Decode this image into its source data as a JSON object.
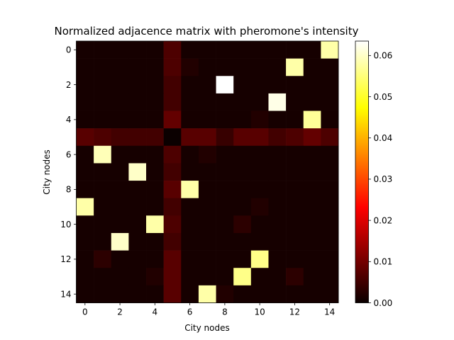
{
  "chart_data": {
    "type": "heatmap",
    "title": "Normalized adjacence matrix with pheromone's intensity",
    "xlabel": "City nodes",
    "ylabel": "City nodes",
    "rows": 15,
    "cols": 15,
    "x_ticks": [
      "0",
      "2",
      "4",
      "6",
      "8",
      "10",
      "12",
      "14"
    ],
    "y_ticks": [
      "0",
      "2",
      "4",
      "6",
      "8",
      "10",
      "12",
      "14"
    ],
    "colormap": "hot",
    "colorbar": {
      "vmin": 0.0,
      "vmax": 0.0635,
      "ticks": [
        0.0,
        0.01,
        0.02,
        0.03,
        0.04,
        0.05,
        0.06
      ],
      "tick_labels": [
        "0.00",
        "0.01",
        "0.02",
        "0.03",
        "0.04",
        "0.05",
        "0.06"
      ]
    },
    "grid": false,
    "values": [
      [
        0.001,
        0.001,
        0.001,
        0.001,
        0.001,
        0.006,
        0.001,
        0.001,
        0.001,
        0.001,
        0.001,
        0.001,
        0.001,
        0.001,
        0.058
      ],
      [
        0.001,
        0.001,
        0.001,
        0.001,
        0.001,
        0.006,
        0.002,
        0.001,
        0.001,
        0.001,
        0.001,
        0.001,
        0.058,
        0.001,
        0.001
      ],
      [
        0.001,
        0.001,
        0.001,
        0.001,
        0.001,
        0.005,
        0.001,
        0.001,
        0.0635,
        0.001,
        0.001,
        0.001,
        0.001,
        0.001,
        0.001
      ],
      [
        0.001,
        0.001,
        0.001,
        0.001,
        0.001,
        0.005,
        0.001,
        0.001,
        0.001,
        0.001,
        0.001,
        0.062,
        0.001,
        0.001,
        0.001
      ],
      [
        0.001,
        0.001,
        0.001,
        0.001,
        0.001,
        0.008,
        0.001,
        0.001,
        0.001,
        0.001,
        0.002,
        0.001,
        0.001,
        0.057,
        0.001
      ],
      [
        0.007,
        0.006,
        0.005,
        0.005,
        0.005,
        0.0,
        0.007,
        0.007,
        0.004,
        0.007,
        0.007,
        0.005,
        0.006,
        0.008,
        0.006
      ],
      [
        0.001,
        0.059,
        0.001,
        0.001,
        0.001,
        0.006,
        0.001,
        0.002,
        0.001,
        0.001,
        0.001,
        0.001,
        0.001,
        0.001,
        0.001
      ],
      [
        0.001,
        0.001,
        0.001,
        0.06,
        0.001,
        0.005,
        0.001,
        0.001,
        0.001,
        0.001,
        0.001,
        0.001,
        0.001,
        0.001,
        0.001
      ],
      [
        0.001,
        0.001,
        0.001,
        0.001,
        0.001,
        0.007,
        0.058,
        0.001,
        0.001,
        0.001,
        0.001,
        0.001,
        0.001,
        0.001,
        0.001
      ],
      [
        0.058,
        0.001,
        0.001,
        0.001,
        0.001,
        0.005,
        0.001,
        0.001,
        0.001,
        0.001,
        0.002,
        0.001,
        0.001,
        0.001,
        0.001
      ],
      [
        0.001,
        0.001,
        0.001,
        0.001,
        0.058,
        0.006,
        0.001,
        0.001,
        0.001,
        0.003,
        0.001,
        0.001,
        0.001,
        0.001,
        0.001
      ],
      [
        0.001,
        0.001,
        0.06,
        0.001,
        0.001,
        0.005,
        0.001,
        0.001,
        0.001,
        0.001,
        0.001,
        0.001,
        0.001,
        0.001,
        0.001
      ],
      [
        0.001,
        0.003,
        0.001,
        0.001,
        0.001,
        0.007,
        0.001,
        0.001,
        0.001,
        0.001,
        0.056,
        0.001,
        0.001,
        0.001,
        0.001
      ],
      [
        0.001,
        0.001,
        0.001,
        0.001,
        0.002,
        0.007,
        0.001,
        0.001,
        0.001,
        0.056,
        0.001,
        0.001,
        0.003,
        0.001,
        0.001
      ],
      [
        0.001,
        0.001,
        0.001,
        0.001,
        0.001,
        0.007,
        0.001,
        0.058,
        0.002,
        0.001,
        0.001,
        0.001,
        0.001,
        0.001,
        0.001
      ]
    ]
  }
}
